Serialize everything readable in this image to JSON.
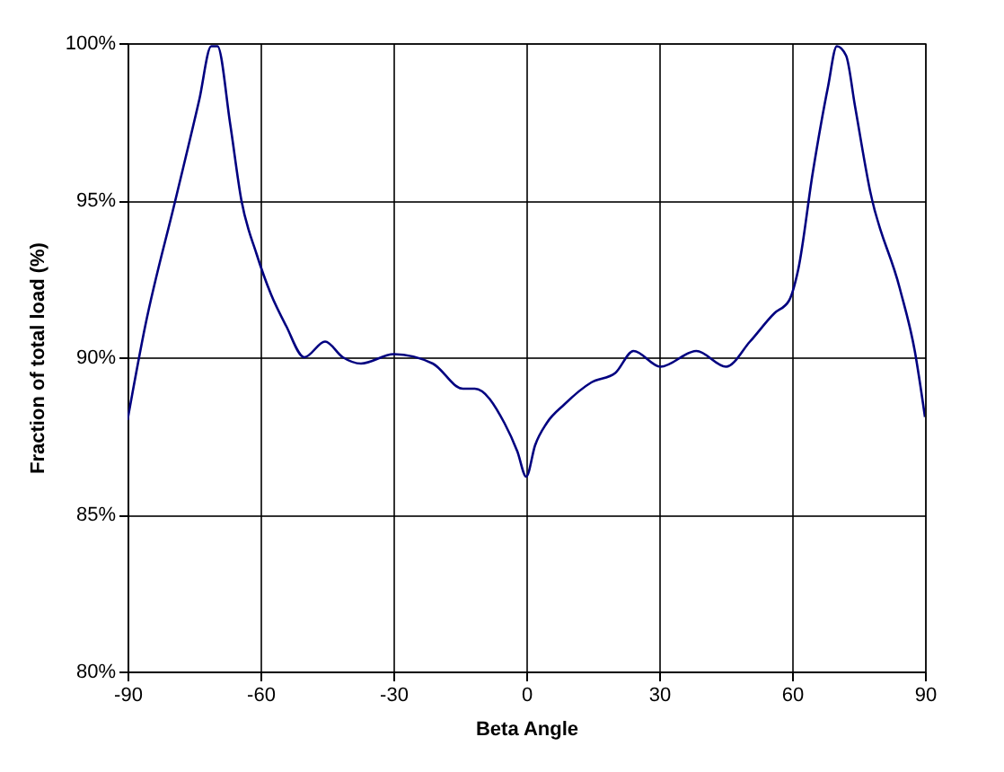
{
  "chart_data": {
    "type": "line",
    "xlabel": "Beta Angle",
    "ylabel": "Fraction of total load (%)",
    "x": [
      -90,
      -86,
      -79.2,
      -73.8,
      -71.1,
      -69.7,
      -66.8,
      -64.3,
      -60.9,
      -57.6,
      -54.2,
      -50.1,
      -45.4,
      -41.4,
      -37.3,
      -29.9,
      -21.1,
      -14.3,
      -11.6,
      -4.9,
      -2,
      0,
      2,
      4.6,
      8.6,
      14.7,
      20.1,
      24.2,
      30.3,
      38.4,
      45.1,
      50.5,
      56,
      59.3,
      61.4,
      64.7,
      68.1,
      70.1,
      72.2,
      74.2,
      77.6,
      84.3,
      87.7,
      90
    ],
    "series": [
      {
        "color": "#000080",
        "values": [
          88,
          91,
          95,
          98.2,
          99.9,
          99.9,
          97.4,
          95,
          93.3,
          92,
          91,
          90,
          90.5,
          90,
          89.8,
          90.1,
          89.8,
          89,
          89,
          87.9,
          87,
          86.2,
          87.2,
          87.9,
          88.5,
          89.2,
          89.5,
          90.2,
          89.7,
          90.2,
          89.7,
          90.5,
          91.4,
          91.8,
          92.8,
          95.9,
          98.6,
          99.9,
          99.6,
          98,
          95.3,
          92.2,
          90.2,
          88.1
        ]
      }
    ],
    "xlim": [
      -90,
      90
    ],
    "xticks": [
      -90,
      -60,
      -30,
      0,
      30,
      60,
      90
    ],
    "ylim": [
      80,
      100
    ],
    "yticks": [
      {
        "value": 80,
        "label": "80%"
      },
      {
        "value": 85,
        "label": "85%"
      },
      {
        "value": 90,
        "label": "90%"
      },
      {
        "value": 95,
        "label": "95%"
      },
      {
        "value": 100,
        "label": "100%"
      }
    ],
    "grid": true,
    "marker": "none",
    "line_style": "solid"
  }
}
